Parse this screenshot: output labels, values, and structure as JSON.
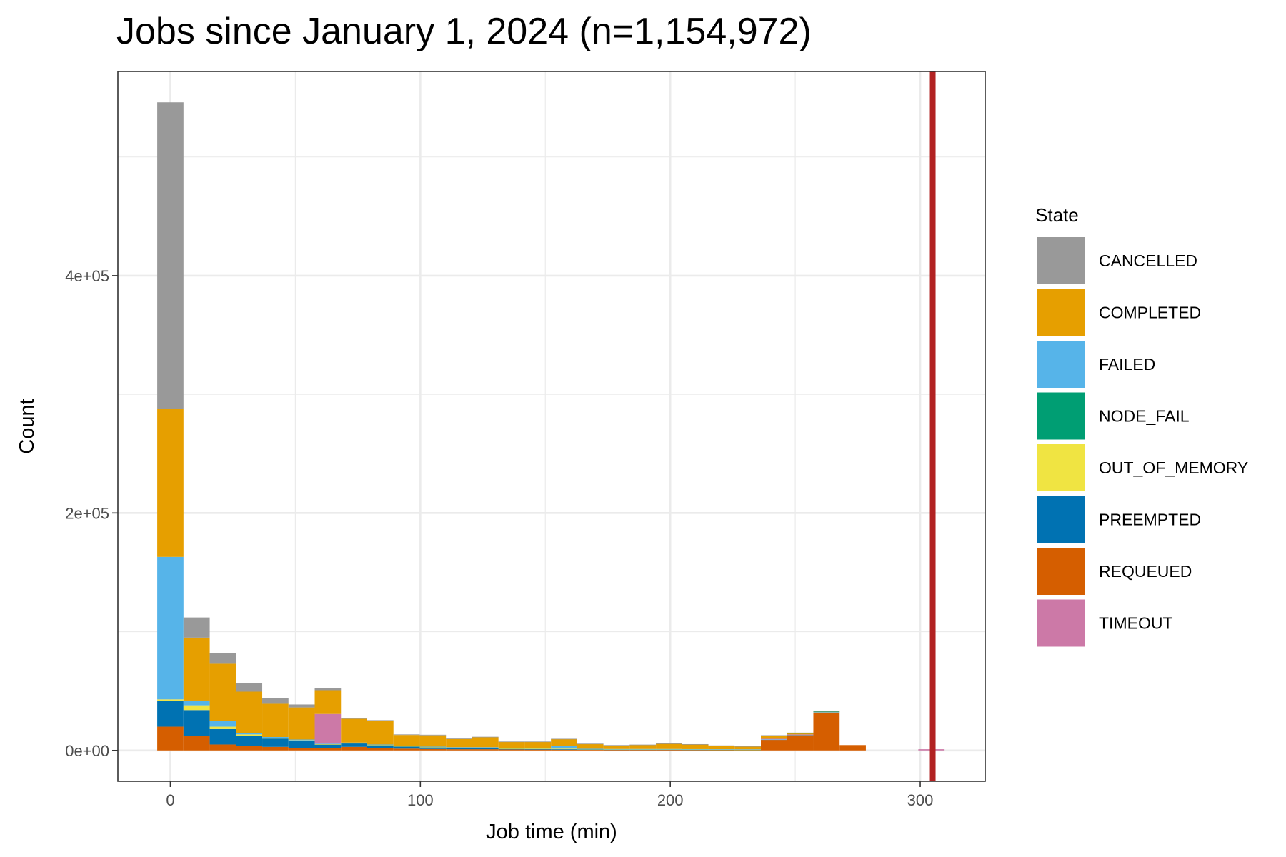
{
  "chart_data": {
    "type": "bar",
    "subtype": "stacked-histogram",
    "title": "Jobs since January 1, 2024 (n=1,154,972)",
    "xlabel": "Job time (min)",
    "ylabel": "Count",
    "xlim": [
      -21,
      326
    ],
    "ylim": [
      -26000,
      572000
    ],
    "xticks": [
      0,
      100,
      200,
      300
    ],
    "xtick_labels": [
      "0",
      "100",
      "200",
      "300"
    ],
    "yticks": [
      0,
      200000,
      400000
    ],
    "ytick_labels": [
      "0e+00",
      "2e+05",
      "4e+05"
    ],
    "grid": true,
    "legend_title": "State",
    "legend_position": "right",
    "reference_line": {
      "x": 305,
      "color": "#b22222"
    },
    "bin_width": 10.5,
    "bin_centers": [
      0,
      10.5,
      21,
      31.5,
      42,
      52.5,
      63,
      73.5,
      84,
      94.5,
      105,
      115.5,
      126,
      136.5,
      147,
      157.5,
      168,
      178.5,
      189,
      199.5,
      210,
      220.5,
      231,
      241.5,
      252,
      262.5,
      273,
      283.5,
      294,
      304.5
    ],
    "series": [
      {
        "name": "REQUEUED",
        "color": "#D55E00",
        "values": [
          20000,
          12000,
          5000,
          4000,
          3000,
          2000,
          2000,
          3000,
          2000,
          1500,
          1200,
          1000,
          1000,
          800,
          700,
          600,
          500,
          400,
          400,
          400,
          400,
          300,
          300,
          9000,
          13000,
          32000,
          4500,
          0,
          0,
          0
        ]
      },
      {
        "name": "PREEMPTED",
        "color": "#0072B2",
        "values": [
          22000,
          22000,
          13000,
          8000,
          7000,
          6000,
          3000,
          3000,
          2500,
          2000,
          1500,
          1200,
          1000,
          800,
          800,
          800,
          600,
          500,
          500,
          500,
          400,
          400,
          300,
          0,
          0,
          0,
          0,
          0,
          0,
          0
        ]
      },
      {
        "name": "OUT_OF_MEMORY",
        "color": "#F0E442",
        "values": [
          1000,
          4000,
          2000,
          1500,
          500,
          500,
          300,
          300,
          200,
          200,
          200,
          200,
          200,
          100,
          100,
          100,
          100,
          100,
          100,
          100,
          100,
          100,
          100,
          0,
          0,
          0,
          0,
          0,
          0,
          0
        ]
      },
      {
        "name": "FAILED",
        "color": "#56B4E9",
        "values": [
          120000,
          4000,
          5000,
          1000,
          800,
          700,
          400,
          300,
          300,
          300,
          300,
          300,
          500,
          500,
          600,
          2500,
          200,
          200,
          200,
          200,
          200,
          200,
          200,
          300,
          200,
          200,
          0,
          0,
          0,
          0
        ]
      },
      {
        "name": "TIMEOUT",
        "color": "#CC79A7",
        "values": [
          0,
          0,
          0,
          0,
          0,
          0,
          25000,
          0,
          0,
          0,
          0,
          0,
          0,
          0,
          0,
          0,
          0,
          0,
          0,
          0,
          0,
          0,
          0,
          500,
          300,
          0,
          0,
          0,
          0,
          1000
        ]
      },
      {
        "name": "COMPLETED",
        "color": "#E69F00",
        "values": [
          125000,
          53000,
          48000,
          35000,
          28000,
          27000,
          20000,
          20000,
          20000,
          9000,
          9500,
          7000,
          8500,
          5000,
          5000,
          5500,
          4000,
          3000,
          3500,
          4500,
          4000,
          3000,
          2500,
          2500,
          1000,
          500,
          0,
          0,
          0,
          0
        ]
      },
      {
        "name": "NODE_FAIL",
        "color": "#009E73",
        "values": [
          0,
          0,
          0,
          0,
          0,
          0,
          0,
          0,
          0,
          0,
          0,
          0,
          0,
          0,
          0,
          0,
          0,
          0,
          0,
          0,
          0,
          0,
          0,
          200,
          200,
          200,
          0,
          0,
          0,
          0
        ]
      },
      {
        "name": "CANCELLED",
        "color": "#999999",
        "values": [
          258000,
          17000,
          9000,
          7000,
          5000,
          2500,
          1500,
          500,
          500,
          500,
          500,
          300,
          300,
          300,
          300,
          300,
          300,
          300,
          200,
          200,
          200,
          200,
          200,
          300,
          300,
          300,
          0,
          0,
          0,
          0
        ]
      }
    ]
  },
  "legend": {
    "title": "State",
    "items": [
      {
        "label": "CANCELLED",
        "color": "#999999"
      },
      {
        "label": "COMPLETED",
        "color": "#E69F00"
      },
      {
        "label": "FAILED",
        "color": "#56B4E9"
      },
      {
        "label": "NODE_FAIL",
        "color": "#009E73"
      },
      {
        "label": "OUT_OF_MEMORY",
        "color": "#F0E442"
      },
      {
        "label": "PREEMPTED",
        "color": "#0072B2"
      },
      {
        "label": "REQUEUED",
        "color": "#D55E00"
      },
      {
        "label": "TIMEOUT",
        "color": "#CC79A7"
      }
    ]
  }
}
